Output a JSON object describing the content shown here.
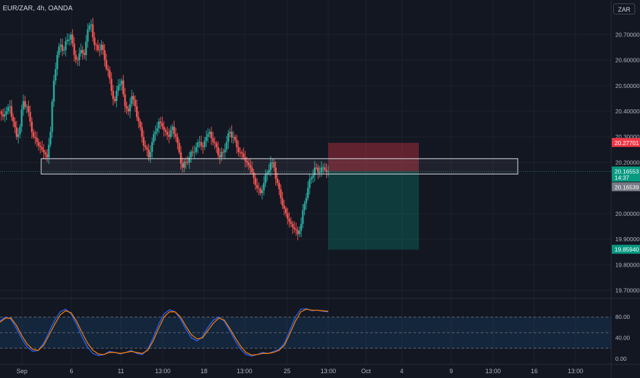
{
  "header": {
    "title": "EUR/ZAR, 4h, OANDA",
    "currency_button": "ZAR"
  },
  "colors": {
    "background": "#131722",
    "up": "#26a69a",
    "down": "#ef5350",
    "grid": "#1e222d",
    "axis_text": "#b2b5be",
    "stoch_k": "#2962ff",
    "stoch_d": "#f57c00"
  },
  "chart_data": [
    {
      "type": "candlestick",
      "title": "EUR/ZAR, 4h, OANDA",
      "x_ticks": [
        "Sep",
        "6",
        "11",
        "13:00",
        "18",
        "13:00",
        "25",
        "13:00",
        "Oct",
        "4",
        "9",
        "13:00",
        "16",
        "13:00"
      ],
      "y_ticks": [
        "20.70000",
        "20.60000",
        "20.50000",
        "20.40000",
        "20.30000",
        "20.20000",
        "20.00000",
        "19.90000",
        "19.80000",
        "19.70000"
      ],
      "ylim": [
        19.68,
        20.76
      ],
      "close_series": [
        20.38,
        20.4,
        20.42,
        20.36,
        20.3,
        20.34,
        20.44,
        20.42,
        20.36,
        20.3,
        20.28,
        20.26,
        20.24,
        20.22,
        20.32,
        20.52,
        20.62,
        20.66,
        20.64,
        20.68,
        20.7,
        20.62,
        20.6,
        20.64,
        20.62,
        20.72,
        20.74,
        20.66,
        20.64,
        20.66,
        20.6,
        20.56,
        20.48,
        20.44,
        20.5,
        20.52,
        20.42,
        20.4,
        20.46,
        20.42,
        20.36,
        20.3,
        20.26,
        20.22,
        20.28,
        20.32,
        20.36,
        20.34,
        20.32,
        20.3,
        20.34,
        20.3,
        20.24,
        20.18,
        20.2,
        20.22,
        20.24,
        20.26,
        20.28,
        20.26,
        20.3,
        20.32,
        20.28,
        20.26,
        20.22,
        20.24,
        20.28,
        20.32,
        20.3,
        20.26,
        20.24,
        20.22,
        20.2,
        20.18,
        20.14,
        20.1,
        20.08,
        20.12,
        20.16,
        20.2,
        20.18,
        20.12,
        20.06,
        20.02,
        19.98,
        19.96,
        19.94,
        19.92,
        19.96,
        20.04,
        20.1,
        20.14,
        20.18,
        20.16,
        20.18,
        20.17,
        20.16553
      ],
      "selling_level": 20.16553,
      "buying_level": 20.16539,
      "countdown": "14:37",
      "position": {
        "entry": 20.16553,
        "stop": 20.27701,
        "target": 19.8594
      },
      "zone": {
        "low": 20.155,
        "high": 20.215
      },
      "price_labels": {
        "stop": "20.27701",
        "last": "20.16553",
        "bid": "20.16539",
        "target": "19.85940"
      }
    },
    {
      "type": "line",
      "title": "",
      "y_ticks": [
        "80.00",
        "40.00",
        "0.00"
      ],
      "ylim": [
        -8,
        108
      ],
      "bands": [
        20,
        50,
        80
      ],
      "series": [
        {
          "values": [
            72,
            80,
            76,
            58,
            38,
            22,
            14,
            16,
            30,
            52,
            74,
            90,
            95,
            86,
            66,
            42,
            22,
            10,
            6,
            8,
            14,
            12,
            9,
            12,
            16,
            10,
            8,
            18,
            40,
            66,
            86,
            94,
            90,
            76,
            56,
            40,
            34,
            42,
            60,
            74,
            80,
            72,
            54,
            34,
            18,
            8,
            5,
            8,
            12,
            10,
            14,
            18,
            30,
            55,
            80,
            95,
            96,
            92,
            93,
            91,
            90
          ]
        },
        {
          "values": [
            70,
            78,
            78,
            64,
            44,
            28,
            18,
            16,
            26,
            46,
            66,
            84,
            92,
            88,
            72,
            50,
            30,
            16,
            9,
            8,
            12,
            12,
            10,
            12,
            14,
            12,
            10,
            16,
            34,
            58,
            80,
            90,
            90,
            80,
            62,
            46,
            38,
            40,
            54,
            68,
            78,
            74,
            58,
            40,
            24,
            12,
            7,
            8,
            10,
            10,
            12,
            16,
            26,
            48,
            72,
            90,
            95,
            93,
            93,
            92,
            91
          ]
        }
      ]
    }
  ]
}
